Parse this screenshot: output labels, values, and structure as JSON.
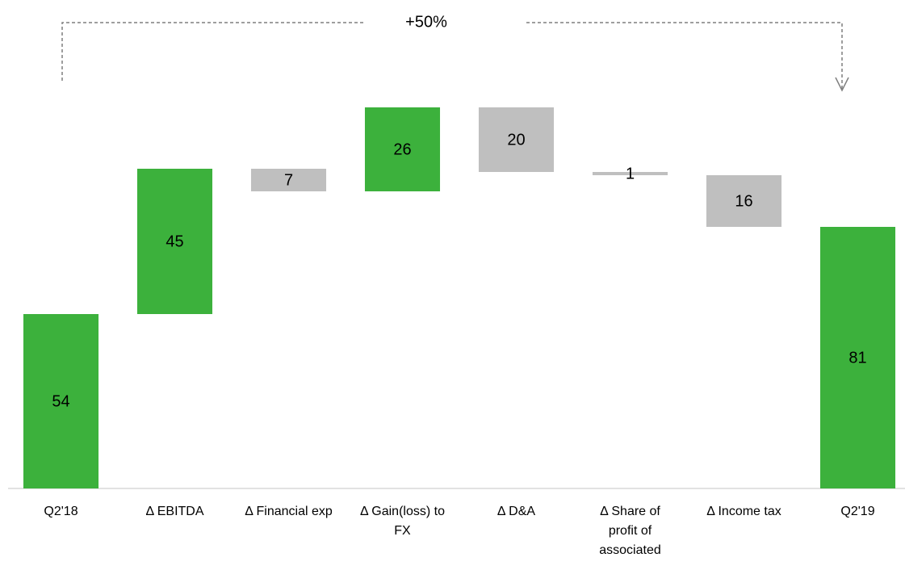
{
  "chart_data": {
    "type": "waterfall",
    "annotation": "+50%",
    "categories": [
      "Q2'18",
      "Δ EBITDA",
      "Δ Financial exp",
      "Δ Gain(loss) to FX",
      "Δ D&A",
      "Δ Share of profit of associated",
      "Δ Income tax",
      "Q2'19"
    ],
    "values": [
      54,
      45,
      -7,
      26,
      -20,
      -1,
      -16,
      81
    ],
    "value_labels": [
      "54",
      "45",
      "7",
      "26",
      "20",
      "1",
      "16",
      "81"
    ],
    "totals": [
      true,
      false,
      false,
      false,
      false,
      false,
      false,
      true
    ],
    "increase_color": "#3cb13c",
    "decrease_color": "#bfbfbf",
    "total_color": "#3cb13c",
    "ylim": [
      0,
      150
    ]
  }
}
